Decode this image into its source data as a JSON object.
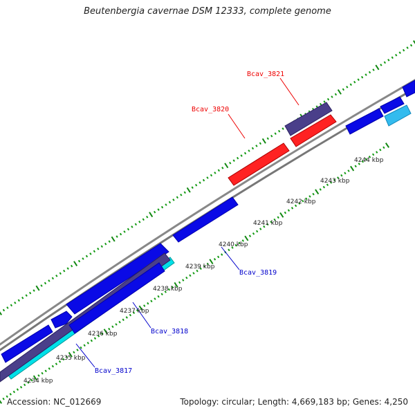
{
  "title": "Beutenbergia cavernae DSM 12333, complete genome",
  "footer": {
    "accession": "Accession: NC_012669",
    "topology": "Topology: circular; Length: 4,669,183 bp; Genes: 4,250"
  },
  "colors": {
    "background": "#ffffff",
    "backbone": "#888888",
    "cds": "#0a0ae6",
    "selected": "#ff0000",
    "rna": "#4a3f8a",
    "misc": "#00e0e8",
    "light": "#33bbee",
    "tick_major": "#118811",
    "tick_minor": "#119911",
    "leader_red": "#ee0000",
    "leader_blue": "#0000cc"
  },
  "ticks": [
    {
      "label": "4234 kbp"
    },
    {
      "label": "4235 kbp"
    },
    {
      "label": "4236 kbp"
    },
    {
      "label": "4237 kbp"
    },
    {
      "label": "4238 kbp"
    },
    {
      "label": "4239 kbp"
    },
    {
      "label": "4240 kbp"
    },
    {
      "label": "4241 kbp"
    },
    {
      "label": "4242 kbp"
    },
    {
      "label": "4243 kbp"
    },
    {
      "label": "4244 kbp"
    }
  ],
  "genes": [
    {
      "name": "Bcav_3817",
      "color": "blue"
    },
    {
      "name": "Bcav_3818",
      "color": "blue"
    },
    {
      "name": "Bcav_3819",
      "color": "blue"
    },
    {
      "name": "Bcav_3820",
      "color": "red"
    },
    {
      "name": "Bcav_3821",
      "color": "red"
    }
  ]
}
